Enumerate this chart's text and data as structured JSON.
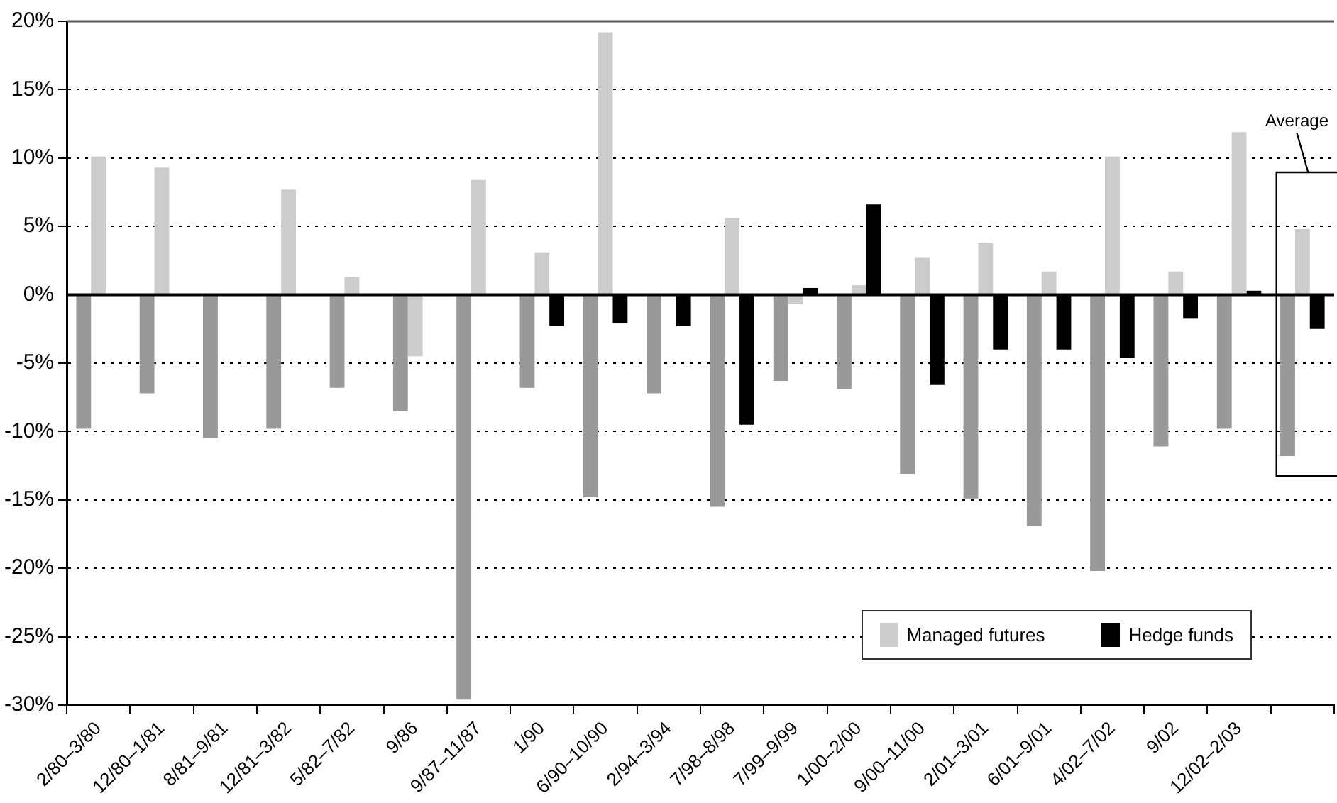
{
  "chart_data": {
    "type": "bar",
    "categories": [
      "2/80–3/80",
      "12/80–1/81",
      "8/81–9/81",
      "12/81–3/82",
      "5/82–7/82",
      "9/86",
      "9/87–11/87",
      "1/90",
      "6/90–10/90",
      "2/94–3/94",
      "7/98–8/98",
      "7/99–9/99",
      "1/00–2/00",
      "9/00–11/00",
      "2/01–3/01",
      "6/01–9/01",
      "4/02–7/02",
      "9/02",
      "12/02–2/03",
      null
    ],
    "series": [
      {
        "color": "#999999",
        "values": [
          -9.8,
          -7.2,
          -10.5,
          -9.8,
          -6.8,
          -8.5,
          -29.6,
          -6.8,
          -14.8,
          -7.2,
          -15.5,
          -6.3,
          -6.9,
          -13.1,
          -14.9,
          -16.9,
          -20.2,
          -11.1,
          -9.8,
          -11.8
        ]
      },
      {
        "name": "Managed futures",
        "color": "#cccccc",
        "values": [
          10.1,
          9.3,
          null,
          7.7,
          1.3,
          -4.5,
          8.4,
          3.1,
          19.2,
          null,
          5.6,
          -0.7,
          0.7,
          2.7,
          3.8,
          1.7,
          10.1,
          1.7,
          11.9,
          4.8
        ]
      },
      {
        "name": "Hedge funds",
        "color": "#000000",
        "values": [
          null,
          null,
          null,
          null,
          null,
          null,
          null,
          -2.3,
          -2.1,
          -2.3,
          -9.5,
          0.5,
          6.6,
          -6.6,
          -4.0,
          -4.0,
          -4.6,
          -1.7,
          0.3,
          -2.5
        ]
      }
    ],
    "ylim": [
      -30,
      20
    ],
    "yticks": [
      {
        "value": -30,
        "label": "-30%"
      },
      {
        "value": -25,
        "label": "-25%"
      },
      {
        "value": -20,
        "label": "-20%"
      },
      {
        "value": -15,
        "label": "-15%"
      },
      {
        "value": -10,
        "label": "-10%"
      },
      {
        "value": -5,
        "label": "-5%"
      },
      {
        "value": 0,
        "label": "0%"
      },
      {
        "value": 5,
        "label": "5%"
      },
      {
        "value": 10,
        "label": "10%"
      },
      {
        "value": 15,
        "label": "15%"
      },
      {
        "value": 20,
        "label": "20%"
      }
    ],
    "grid": "y",
    "line_style": "dotted",
    "legend": "bottom right",
    "annotations": [
      "Average"
    ]
  }
}
